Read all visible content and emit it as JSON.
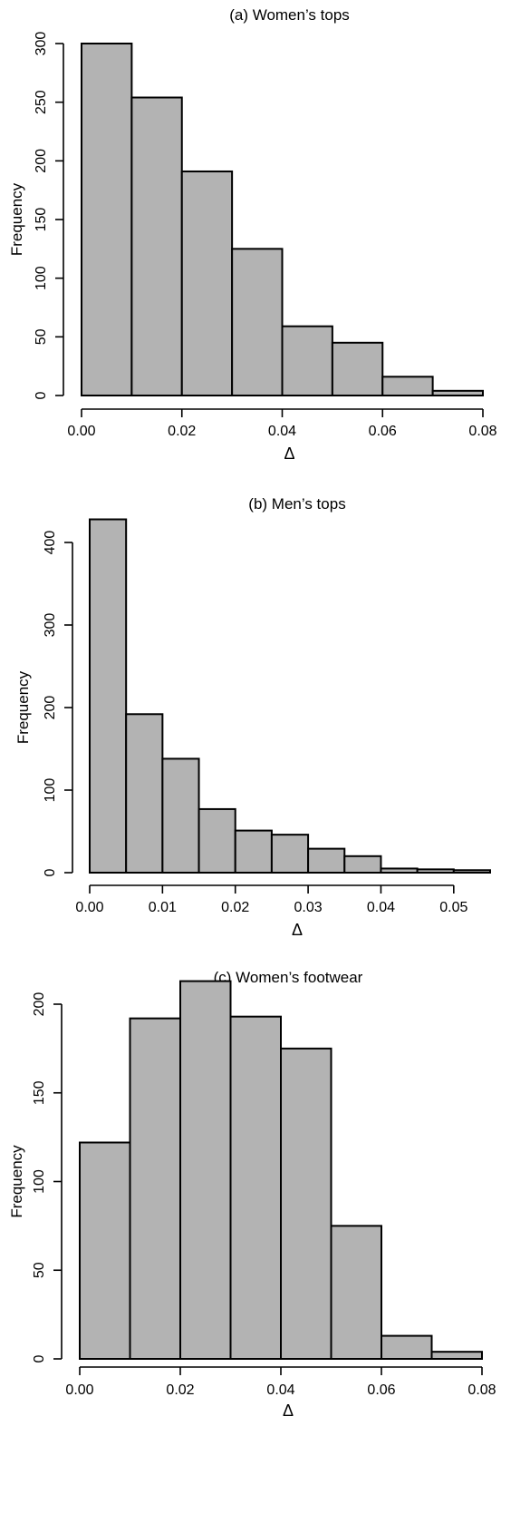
{
  "chart_data": [
    {
      "type": "bar",
      "title": "(a) Women’s tops",
      "xlabel": "Δ",
      "ylabel": "Frequency",
      "bin_edges": [
        0.0,
        0.01,
        0.02,
        0.03,
        0.04,
        0.05,
        0.06,
        0.07,
        0.08
      ],
      "values": [
        300,
        254,
        191,
        125,
        59,
        45,
        16,
        4
      ],
      "xlim": [
        0.0,
        0.08
      ],
      "ylim": [
        0,
        300
      ],
      "x_ticks": [
        0.0,
        0.02,
        0.04,
        0.06,
        0.08
      ],
      "x_tick_labels": [
        "0.00",
        "0.02",
        "0.04",
        "0.06",
        "0.08"
      ],
      "y_ticks": [
        0,
        50,
        100,
        150,
        200,
        250,
        300
      ],
      "y_tick_labels": [
        "0",
        "50",
        "100",
        "150",
        "200",
        "250",
        "300"
      ],
      "grid": false
    },
    {
      "type": "bar",
      "title": "(b) Men’s tops",
      "xlabel": "Δ",
      "ylabel": "Frequency",
      "bin_edges": [
        0.0,
        0.005,
        0.01,
        0.015,
        0.02,
        0.025,
        0.03,
        0.035,
        0.04,
        0.045,
        0.05,
        0.055
      ],
      "values": [
        428,
        192,
        138,
        77,
        51,
        46,
        29,
        20,
        5,
        4,
        3
      ],
      "xlim": [
        0.0,
        0.055
      ],
      "ylim": [
        0,
        400
      ],
      "x_ticks": [
        0.0,
        0.01,
        0.02,
        0.03,
        0.04,
        0.05
      ],
      "x_tick_labels": [
        "0.00",
        "0.01",
        "0.02",
        "0.03",
        "0.04",
        "0.05"
      ],
      "y_ticks": [
        0,
        100,
        200,
        300,
        400
      ],
      "y_tick_labels": [
        "0",
        "100",
        "200",
        "300",
        "400"
      ],
      "grid": false
    },
    {
      "type": "bar",
      "title": "(c) Women’s footwear",
      "xlabel": "Δ",
      "ylabel": "Frequency",
      "bin_edges": [
        0.0,
        0.01,
        0.02,
        0.03,
        0.04,
        0.05,
        0.06,
        0.07,
        0.08
      ],
      "values": [
        122,
        192,
        213,
        193,
        175,
        75,
        13,
        4
      ],
      "xlim": [
        0.0,
        0.08
      ],
      "ylim": [
        0,
        200
      ],
      "x_ticks": [
        0.0,
        0.02,
        0.04,
        0.06,
        0.08
      ],
      "x_tick_labels": [
        "0.00",
        "0.02",
        "0.04",
        "0.06",
        "0.08"
      ],
      "y_ticks": [
        0,
        50,
        100,
        150,
        200
      ],
      "y_tick_labels": [
        "0",
        "50",
        "100",
        "150",
        "200"
      ],
      "grid": false
    }
  ]
}
